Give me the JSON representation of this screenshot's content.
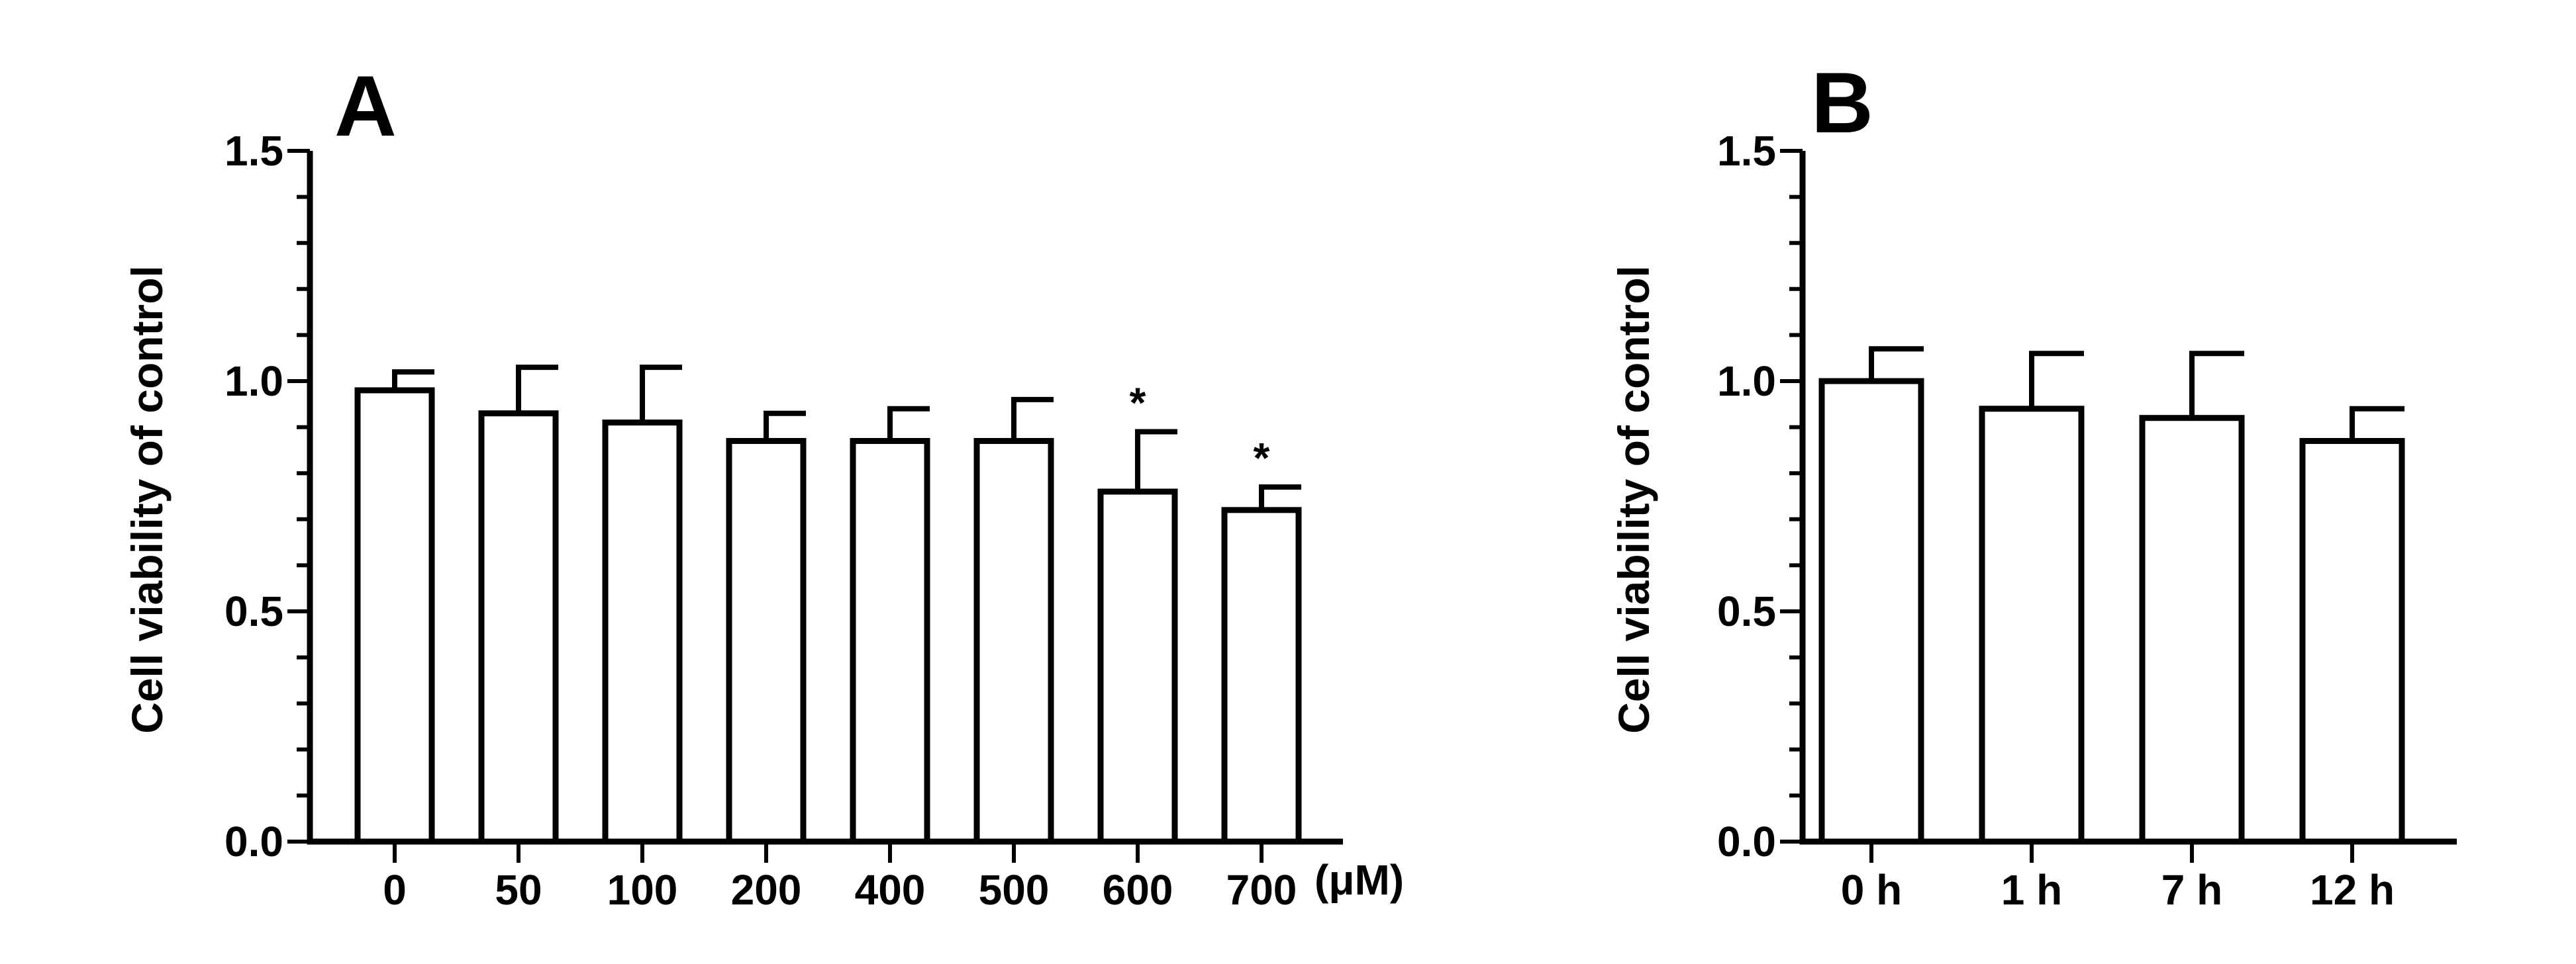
{
  "chart_data": [
    {
      "type": "bar",
      "panel_label": "A",
      "ylabel": "Cell viability of control",
      "xlabel": "",
      "x_unit": "(μM)",
      "categories": [
        "0",
        "50",
        "100",
        "200",
        "400",
        "500",
        "600",
        "700"
      ],
      "values": [
        0.98,
        0.93,
        0.91,
        0.87,
        0.87,
        0.87,
        0.76,
        0.72
      ],
      "errors": [
        0.04,
        0.1,
        0.12,
        0.06,
        0.07,
        0.09,
        0.13,
        0.05
      ],
      "significance": [
        "",
        "",
        "",
        "",
        "",
        "",
        "*",
        "*"
      ],
      "ylim": [
        0,
        1.5
      ],
      "yticks": [
        "0.0",
        "0.5",
        "1.0",
        "1.5"
      ],
      "grid": false,
      "bar_fill": "#ffffff",
      "bar_stroke": "#000000"
    },
    {
      "type": "bar",
      "panel_label": "B",
      "ylabel": "Cell viability of control",
      "xlabel": "",
      "categories": [
        "0 h",
        "1 h",
        "7 h",
        "12 h"
      ],
      "values": [
        1.0,
        0.94,
        0.92,
        0.87
      ],
      "errors": [
        0.07,
        0.12,
        0.14,
        0.07
      ],
      "significance": [
        "",
        "",
        "",
        ""
      ],
      "ylim": [
        0,
        1.5
      ],
      "yticks": [
        "0.0",
        "0.5",
        "1.0",
        "1.5"
      ],
      "grid": false,
      "bar_fill": "#ffffff",
      "bar_stroke": "#000000"
    }
  ]
}
